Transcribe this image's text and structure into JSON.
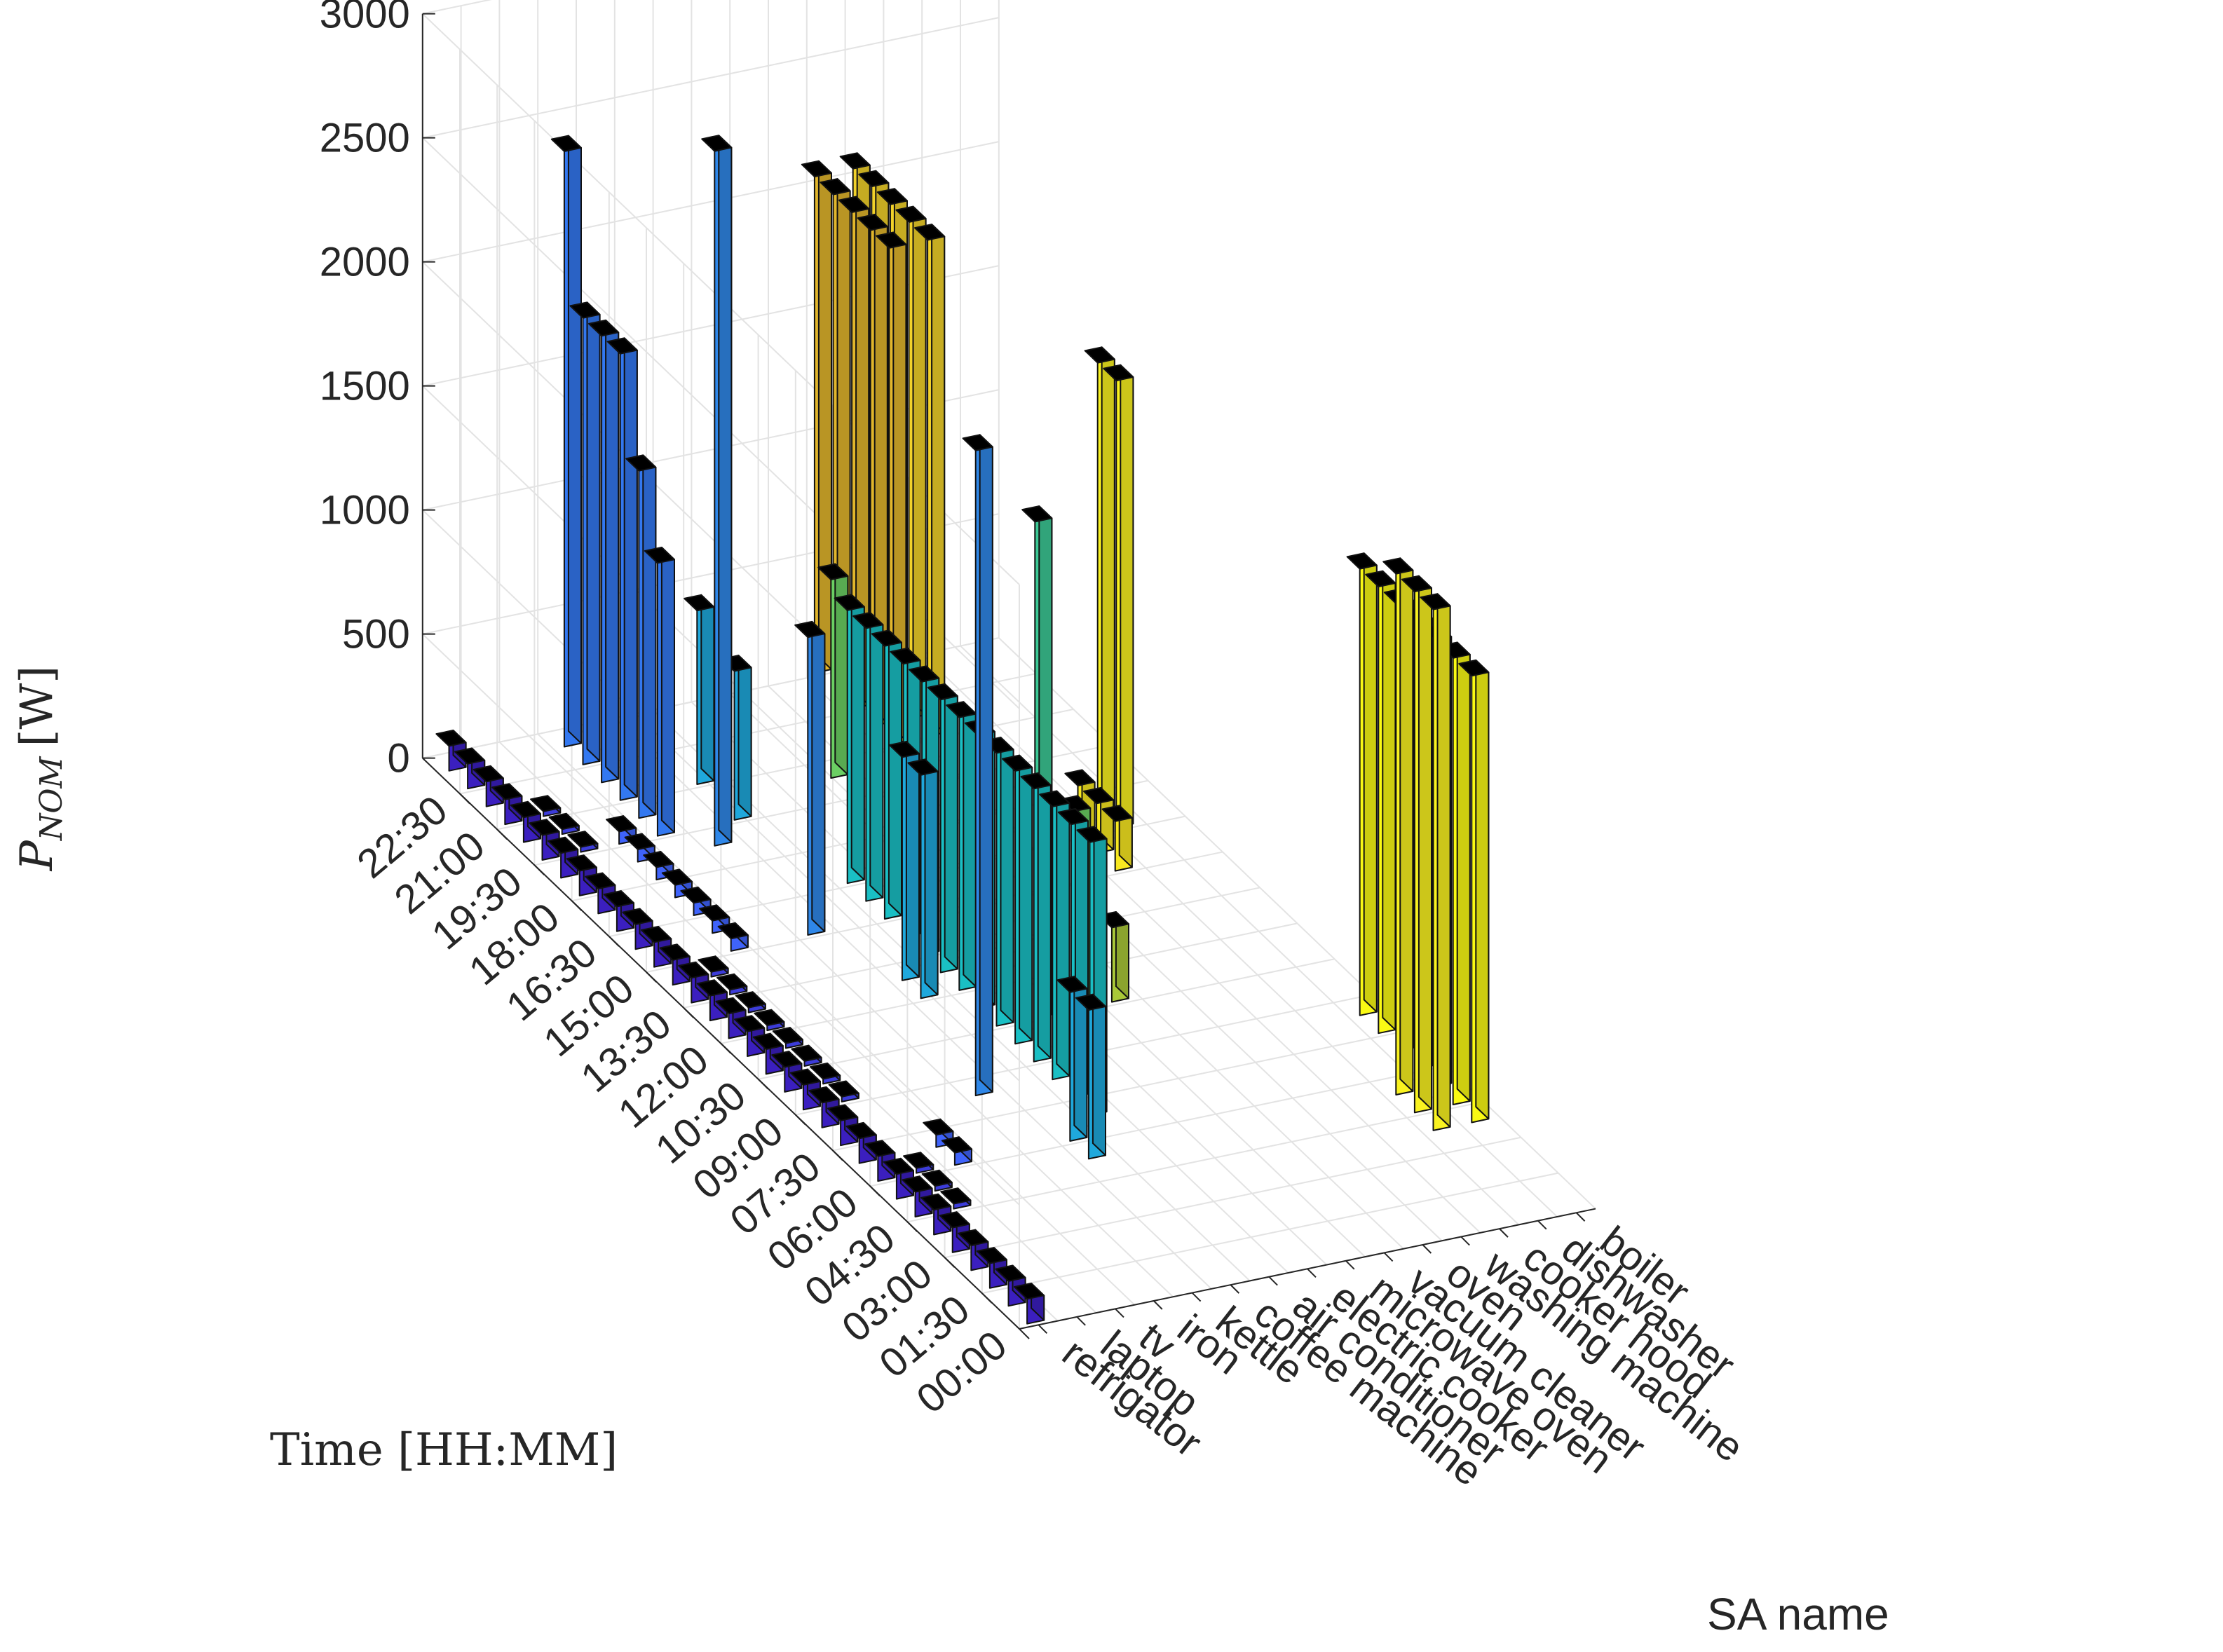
{
  "chart_data": {
    "type": "bar3d",
    "title": "",
    "ylabel": {
      "main": "P",
      "sub": "NOM",
      "unit": "[W]"
    },
    "xlabel": "Time [HH:MM]",
    "zlabel": "SA name",
    "ylim": [
      0,
      3000
    ],
    "y_ticks": [
      "0",
      "500",
      "1000",
      "1500",
      "2000",
      "2500",
      "3000"
    ],
    "time_ticks": [
      "00:00",
      "01:30",
      "03:00",
      "04:30",
      "06:00",
      "07:30",
      "09:00",
      "10:30",
      "12:00",
      "13:30",
      "15:00",
      "16:30",
      "18:00",
      "19:30",
      "21:00",
      "22:30"
    ],
    "appliances": [
      "refrigator",
      "laptop",
      "tv",
      "iron",
      "kettle",
      "coffee machine",
      "air conditioner",
      "electric cooker",
      "microwave oven",
      "vacuum cleaner",
      "oven",
      "washing machine",
      "cooker hood",
      "dishwasher",
      "boiler"
    ],
    "colors": [
      "#3b1fbf",
      "#3c3cd9",
      "#3f63fa",
      "#3378f0",
      "#2f87e8",
      "#1fa8dc",
      "#1abfc4",
      "#3cc895",
      "#6bcf63",
      "#a9c838",
      "#e2b62c",
      "#f2d22a",
      "#f8e821",
      "#f9f220",
      "#fafa14"
    ],
    "series": [
      {
        "name": "refrigator",
        "bars": [
          [
            0,
            100
          ],
          [
            1,
            100
          ],
          [
            2,
            100
          ],
          [
            3,
            100
          ],
          [
            4,
            100
          ],
          [
            5,
            100
          ],
          [
            6,
            100
          ],
          [
            7,
            100
          ],
          [
            8,
            100
          ],
          [
            9,
            100
          ],
          [
            10,
            100
          ],
          [
            11,
            100
          ],
          [
            12,
            100
          ],
          [
            13,
            100
          ],
          [
            14,
            100
          ],
          [
            15,
            100
          ],
          [
            16,
            100
          ],
          [
            17,
            100
          ],
          [
            18,
            100
          ],
          [
            19,
            100
          ],
          [
            20,
            100
          ],
          [
            21,
            100
          ],
          [
            22,
            100
          ],
          [
            23,
            100
          ],
          [
            24,
            100
          ],
          [
            25,
            100
          ],
          [
            26,
            100
          ],
          [
            27,
            100
          ],
          [
            28,
            100
          ],
          [
            29,
            100
          ],
          [
            30,
            100
          ],
          [
            31,
            100
          ]
        ]
      },
      {
        "name": "laptop",
        "bars": [
          [
            6,
            20
          ],
          [
            7,
            20
          ],
          [
            8,
            20
          ],
          [
            12,
            20
          ],
          [
            13,
            20
          ],
          [
            14,
            20
          ],
          [
            15,
            20
          ],
          [
            16,
            20
          ],
          [
            17,
            20
          ],
          [
            18,
            20
          ],
          [
            19,
            20
          ],
          [
            26,
            20
          ],
          [
            27,
            20
          ],
          [
            28,
            20
          ]
        ]
      },
      {
        "name": "tv",
        "bars": [
          [
            8,
            50
          ],
          [
            9,
            50
          ],
          [
            20,
            50
          ],
          [
            21,
            50
          ],
          [
            22,
            50
          ],
          [
            23,
            50
          ],
          [
            24,
            50
          ],
          [
            25,
            50
          ],
          [
            26,
            50
          ]
        ]
      },
      {
        "name": "iron",
        "bars": [
          [
            26,
            1100
          ],
          [
            27,
            1400
          ],
          [
            28,
            1800
          ],
          [
            29,
            1800
          ],
          [
            30,
            1800
          ],
          [
            31,
            2400
          ]
        ]
      },
      {
        "name": "kettle",
        "bars": [
          [
            11,
            2600
          ],
          [
            20,
            1200
          ],
          [
            25,
            2800
          ]
        ]
      },
      {
        "name": "coffee machine",
        "bars": [
          [
            7,
            600
          ],
          [
            8,
            600
          ],
          [
            16,
            900
          ],
          [
            17,
            900
          ],
          [
            26,
            600
          ],
          [
            28,
            700
          ]
        ]
      },
      {
        "name": "air conditioner",
        "bars": [
          [
            9,
            1100
          ],
          [
            10,
            1100
          ],
          [
            11,
            1100
          ],
          [
            12,
            1100
          ],
          [
            13,
            1100
          ],
          [
            14,
            1100
          ],
          [
            15,
            1100
          ],
          [
            16,
            1100
          ],
          [
            17,
            1100
          ],
          [
            18,
            1100
          ],
          [
            19,
            1100
          ],
          [
            20,
            1100
          ],
          [
            21,
            1100
          ],
          [
            22,
            1100
          ]
        ]
      },
      {
        "name": "electric cooker",
        "bars": [
          [
            14,
            2000
          ]
        ]
      },
      {
        "name": "microwave oven",
        "bars": [
          [
            14,
            800
          ],
          [
            27,
            800
          ]
        ]
      },
      {
        "name": "vacuum cleaner",
        "bars": [
          [
            14,
            300
          ]
        ]
      },
      {
        "name": "oven",
        "bars": [
          [
            28,
            2000
          ],
          [
            29,
            2000
          ],
          [
            30,
            2000
          ],
          [
            31,
            2000
          ],
          [
            32,
            2000
          ]
        ]
      },
      {
        "name": "washing machine",
        "bars": [
          [
            28,
            2000
          ],
          [
            29,
            2000
          ],
          [
            30,
            2000
          ],
          [
            31,
            2000
          ],
          [
            32,
            2000
          ]
        ]
      },
      {
        "name": "cooker hood",
        "bars": [
          [
            20,
            200
          ],
          [
            21,
            200
          ],
          [
            22,
            200
          ]
        ]
      },
      {
        "name": "dishwasher",
        "bars": [
          [
            5,
            2100
          ],
          [
            6,
            2100
          ],
          [
            7,
            2100
          ],
          [
            22,
            1800
          ],
          [
            23,
            1800
          ]
        ]
      },
      {
        "name": "boiler",
        "bars": [
          [
            5,
            1800
          ],
          [
            6,
            1800
          ],
          [
            7,
            1800
          ],
          [
            8,
            1800
          ],
          [
            9,
            1800
          ],
          [
            10,
            1800
          ],
          [
            11,
            1800
          ]
        ]
      }
    ]
  }
}
